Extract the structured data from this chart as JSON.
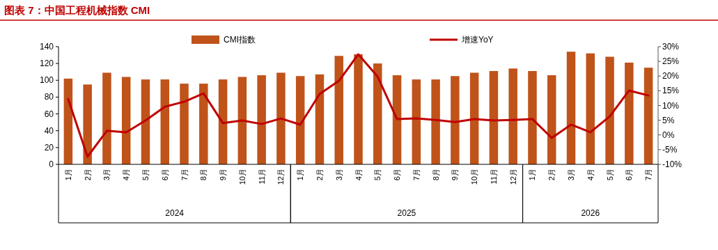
{
  "chart_data": {
    "type": "bar",
    "title": "图表 7：中国工程机械指数 CMI",
    "categories": [
      "1月",
      "2月",
      "3月",
      "4月",
      "5月",
      "6月",
      "7月",
      "8月",
      "9月",
      "10月",
      "11月",
      "12月",
      "1月",
      "2月",
      "3月",
      "4月",
      "5月",
      "6月",
      "7月",
      "8月",
      "9月",
      "10月",
      "11月",
      "12月",
      "1月",
      "2月",
      "3月",
      "4月",
      "5月",
      "6月",
      "7月"
    ],
    "series": [
      {
        "name": "CMI指数",
        "color": "#c0531a",
        "values": [
          102,
          95,
          109,
          104,
          101,
          101,
          96,
          96,
          101,
          104,
          106,
          109,
          105,
          107,
          129,
          131,
          120,
          106,
          101,
          101,
          105,
          109,
          111,
          114,
          111,
          106,
          134,
          132,
          128,
          121,
          115
        ]
      },
      {
        "name": "增速YoY",
        "type": "line",
        "axis": "y2",
        "color": "#c00000",
        "values": [
          12.2,
          -7.4,
          1.4,
          0.9,
          4.9,
          9.6,
          11.3,
          14.1,
          4.0,
          4.9,
          3.7,
          5.6,
          3.5,
          13.9,
          18.4,
          27.4,
          19.8,
          5.4,
          5.6,
          5.1,
          4.4,
          5.4,
          4.9,
          5.1,
          5.4,
          -1.0,
          3.5,
          0.9,
          6.3,
          15.1,
          13.4
        ]
      }
    ],
    "ylim": [
      0,
      140
    ],
    "yticks": [
      0,
      20,
      40,
      60,
      80,
      100,
      120,
      140
    ],
    "y2lim": [
      -10,
      30
    ],
    "y2ticks": [
      {
        "value": -10,
        "label": "-10%"
      },
      {
        "value": -5,
        "label": "-5%"
      },
      {
        "value": 0,
        "label": "0%"
      },
      {
        "value": 5,
        "label": "5%"
      },
      {
        "value": 10,
        "label": "10%"
      },
      {
        "value": 15,
        "label": "15%"
      },
      {
        "value": 20,
        "label": "20%"
      },
      {
        "value": 25,
        "label": "25%"
      },
      {
        "value": 30,
        "label": "30%"
      }
    ],
    "annotations": [
      "2024",
      "2025",
      "2026"
    ],
    "legend": "top",
    "grid": false,
    "marker": "none",
    "line_style": "solid"
  }
}
